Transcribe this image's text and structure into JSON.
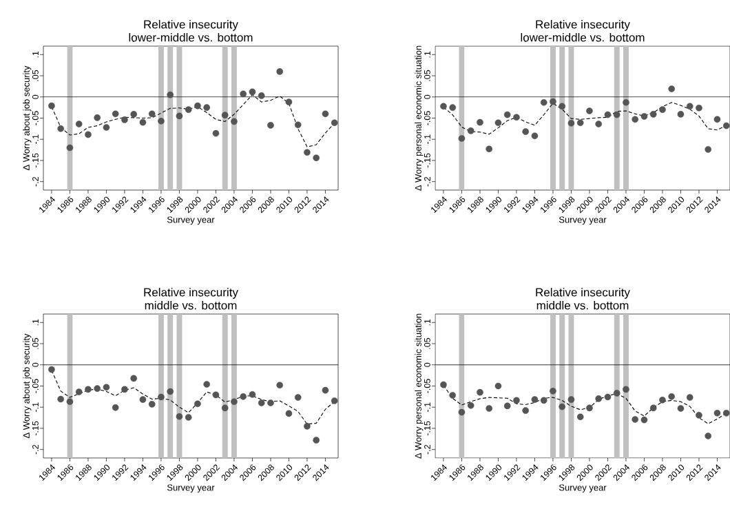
{
  "chart_data": [
    {
      "type": "scatter",
      "title": "Relative insecurity",
      "subtitle": "lower-middle vs. bottom",
      "xlabel": "Survey year",
      "ylabel": "Δ Worry about job security",
      "x": [
        1984,
        1985,
        1986,
        1987,
        1988,
        1989,
        1990,
        1991,
        1992,
        1993,
        1994,
        1995,
        1996,
        1997,
        1998,
        1999,
        2000,
        2001,
        2002,
        2003,
        2004,
        2005,
        2006,
        2007,
        2008,
        2009,
        2010,
        2011,
        2012,
        2013,
        2014,
        2015
      ],
      "series": [
        {
          "type": "scatter",
          "marker": "circle",
          "color": "#555555",
          "values": [
            -0.021,
            -0.075,
            -0.12,
            -0.064,
            -0.089,
            -0.049,
            -0.072,
            -0.04,
            -0.054,
            -0.041,
            -0.06,
            -0.04,
            -0.057,
            0.005,
            -0.045,
            -0.03,
            -0.021,
            -0.025,
            -0.086,
            -0.043,
            -0.058,
            0.007,
            0.012,
            0.003,
            -0.067,
            0.06,
            -0.012,
            -0.066,
            -0.131,
            -0.144,
            -0.04,
            -0.061
          ]
        },
        {
          "type": "line",
          "color": "#000000",
          "line_style": "dashed",
          "values": [
            -0.023,
            -0.072,
            -0.09,
            -0.087,
            -0.072,
            -0.068,
            -0.059,
            -0.053,
            -0.048,
            -0.049,
            -0.05,
            -0.049,
            -0.038,
            -0.027,
            -0.026,
            -0.029,
            -0.023,
            -0.037,
            -0.053,
            -0.058,
            -0.041,
            -0.018,
            0.005,
            -0.012,
            -0.008,
            0.002,
            -0.015,
            -0.075,
            -0.118,
            -0.113,
            -0.085,
            -0.062
          ]
        }
      ],
      "xlim": [
        1983.1,
        2015.4
      ],
      "ylim": [
        -0.22,
        0.12
      ],
      "xticks": [
        1984,
        1986,
        1988,
        1990,
        1992,
        1994,
        1996,
        1998,
        2000,
        2002,
        2004,
        2006,
        2008,
        2010,
        2012,
        2014
      ],
      "yticks": [
        {
          "value": -0.2,
          "label": "-.2"
        },
        {
          "value": -0.15,
          "label": "-.15"
        },
        {
          "value": -0.1,
          "label": "-.1"
        },
        {
          "value": -0.05,
          "label": "-.05"
        },
        {
          "value": 0,
          "label": "0"
        },
        {
          "value": 0.05,
          "label": ".05"
        },
        {
          "value": 0.1,
          "label": ".1"
        }
      ],
      "ref_lines": [
        {
          "axis": "y",
          "value": 0,
          "color": "#000000"
        }
      ],
      "bands": [
        {
          "axis": "x",
          "from": 1985.7,
          "to": 1986.3,
          "color": "#c0c0c0"
        },
        {
          "axis": "x",
          "from": 1995.7,
          "to": 1996.3,
          "color": "#c0c0c0"
        },
        {
          "axis": "x",
          "from": 1996.7,
          "to": 1997.3,
          "color": "#c0c0c0"
        },
        {
          "axis": "x",
          "from": 1997.7,
          "to": 1998.3,
          "color": "#c0c0c0"
        },
        {
          "axis": "x",
          "from": 2002.7,
          "to": 2003.3,
          "color": "#c0c0c0"
        },
        {
          "axis": "x",
          "from": 2003.7,
          "to": 2004.3,
          "color": "#c0c0c0"
        }
      ]
    },
    {
      "type": "scatter",
      "title": "Relative insecurity",
      "subtitle": "lower-middle vs. bottom",
      "xlabel": "Survey year",
      "ylabel": "Δ Worry personal economic situation",
      "x": [
        1984,
        1985,
        1986,
        1987,
        1988,
        1989,
        1990,
        1991,
        1992,
        1993,
        1994,
        1995,
        1996,
        1997,
        1998,
        1999,
        2000,
        2001,
        2002,
        2003,
        2004,
        2005,
        2006,
        2007,
        2008,
        2009,
        2010,
        2011,
        2012,
        2013,
        2014,
        2015
      ],
      "series": [
        {
          "type": "scatter",
          "marker": "circle",
          "color": "#555555",
          "values": [
            -0.022,
            -0.025,
            -0.098,
            -0.08,
            -0.06,
            -0.123,
            -0.061,
            -0.042,
            -0.048,
            -0.082,
            -0.092,
            -0.013,
            -0.011,
            -0.022,
            -0.062,
            -0.061,
            -0.033,
            -0.064,
            -0.042,
            -0.042,
            -0.013,
            -0.053,
            -0.046,
            -0.041,
            -0.03,
            0.019,
            -0.041,
            -0.022,
            -0.026,
            -0.124,
            -0.053,
            -0.068
          ]
        },
        {
          "type": "line",
          "color": "#000000",
          "line_style": "dashed",
          "values": [
            -0.024,
            -0.042,
            -0.071,
            -0.082,
            -0.083,
            -0.088,
            -0.073,
            -0.056,
            -0.048,
            -0.059,
            -0.067,
            -0.042,
            -0.015,
            -0.029,
            -0.051,
            -0.053,
            -0.051,
            -0.049,
            -0.048,
            -0.034,
            -0.033,
            -0.04,
            -0.045,
            -0.037,
            -0.023,
            -0.013,
            -0.02,
            -0.029,
            -0.045,
            -0.075,
            -0.078,
            -0.067
          ]
        }
      ],
      "xlim": [
        1983.1,
        2015.4
      ],
      "ylim": [
        -0.22,
        0.12
      ],
      "xticks": [
        1984,
        1986,
        1988,
        1990,
        1992,
        1994,
        1996,
        1998,
        2000,
        2002,
        2004,
        2006,
        2008,
        2010,
        2012,
        2014
      ],
      "yticks": [
        {
          "value": -0.2,
          "label": "-.2"
        },
        {
          "value": -0.15,
          "label": "-.15"
        },
        {
          "value": -0.1,
          "label": "-.1"
        },
        {
          "value": -0.05,
          "label": "-.05"
        },
        {
          "value": 0,
          "label": "0"
        },
        {
          "value": 0.05,
          "label": ".05"
        },
        {
          "value": 0.1,
          "label": ".1"
        }
      ],
      "ref_lines": [
        {
          "axis": "y",
          "value": 0,
          "color": "#000000"
        }
      ],
      "bands": [
        {
          "axis": "x",
          "from": 1985.7,
          "to": 1986.3,
          "color": "#c0c0c0"
        },
        {
          "axis": "x",
          "from": 1995.7,
          "to": 1996.3,
          "color": "#c0c0c0"
        },
        {
          "axis": "x",
          "from": 1996.7,
          "to": 1997.3,
          "color": "#c0c0c0"
        },
        {
          "axis": "x",
          "from": 1997.7,
          "to": 1998.3,
          "color": "#c0c0c0"
        },
        {
          "axis": "x",
          "from": 2002.7,
          "to": 2003.3,
          "color": "#c0c0c0"
        },
        {
          "axis": "x",
          "from": 2003.7,
          "to": 2004.3,
          "color": "#c0c0c0"
        }
      ]
    },
    {
      "type": "scatter",
      "title": "Relative insecurity",
      "subtitle": "middle vs. bottom",
      "xlabel": "Survey year",
      "ylabel": "Δ Worry about job security",
      "x": [
        1984,
        1985,
        1986,
        1987,
        1988,
        1989,
        1990,
        1991,
        1992,
        1993,
        1994,
        1995,
        1996,
        1997,
        1998,
        1999,
        2000,
        2001,
        2002,
        2003,
        2004,
        2005,
        2006,
        2007,
        2008,
        2009,
        2010,
        2011,
        2012,
        2013,
        2014,
        2015
      ],
      "series": [
        {
          "type": "scatter",
          "marker": "circle",
          "color": "#555555",
          "values": [
            -0.011,
            -0.081,
            -0.087,
            -0.064,
            -0.058,
            -0.056,
            -0.053,
            -0.101,
            -0.058,
            -0.032,
            -0.082,
            -0.093,
            -0.076,
            -0.063,
            -0.122,
            -0.124,
            -0.092,
            -0.046,
            -0.071,
            -0.102,
            -0.087,
            -0.075,
            -0.07,
            -0.09,
            -0.09,
            -0.048,
            -0.115,
            -0.077,
            -0.145,
            -0.178,
            -0.06,
            -0.085
          ]
        },
        {
          "type": "line",
          "color": "#000000",
          "line_style": "dashed",
          "values": [
            -0.013,
            -0.062,
            -0.077,
            -0.068,
            -0.06,
            -0.057,
            -0.063,
            -0.073,
            -0.06,
            -0.054,
            -0.069,
            -0.081,
            -0.079,
            -0.083,
            -0.1,
            -0.113,
            -0.09,
            -0.064,
            -0.071,
            -0.088,
            -0.082,
            -0.074,
            -0.073,
            -0.082,
            -0.087,
            -0.085,
            -0.097,
            -0.11,
            -0.14,
            -0.138,
            -0.105,
            -0.087
          ]
        }
      ],
      "xlim": [
        1983.1,
        2015.4
      ],
      "ylim": [
        -0.22,
        0.12
      ],
      "xticks": [
        1984,
        1986,
        1988,
        1990,
        1992,
        1994,
        1996,
        1998,
        2000,
        2002,
        2004,
        2006,
        2008,
        2010,
        2012,
        2014
      ],
      "yticks": [
        {
          "value": -0.2,
          "label": "-.2"
        },
        {
          "value": -0.15,
          "label": "-.15"
        },
        {
          "value": -0.1,
          "label": "-.1"
        },
        {
          "value": -0.05,
          "label": "-.05"
        },
        {
          "value": 0,
          "label": "0"
        },
        {
          "value": 0.05,
          "label": ".05"
        },
        {
          "value": 0.1,
          "label": ".1"
        }
      ],
      "ref_lines": [
        {
          "axis": "y",
          "value": 0,
          "color": "#000000"
        }
      ],
      "bands": [
        {
          "axis": "x",
          "from": 1985.7,
          "to": 1986.3,
          "color": "#c0c0c0"
        },
        {
          "axis": "x",
          "from": 1995.7,
          "to": 1996.3,
          "color": "#c0c0c0"
        },
        {
          "axis": "x",
          "from": 1996.7,
          "to": 1997.3,
          "color": "#c0c0c0"
        },
        {
          "axis": "x",
          "from": 1997.7,
          "to": 1998.3,
          "color": "#c0c0c0"
        },
        {
          "axis": "x",
          "from": 2002.7,
          "to": 2003.3,
          "color": "#c0c0c0"
        },
        {
          "axis": "x",
          "from": 2003.7,
          "to": 2004.3,
          "color": "#c0c0c0"
        }
      ]
    },
    {
      "type": "scatter",
      "title": "Relative insecurity",
      "subtitle": "middle vs. bottom",
      "xlabel": "Survey year",
      "ylabel": "Δ Worry personal economic situation",
      "x": [
        1984,
        1985,
        1986,
        1987,
        1988,
        1989,
        1990,
        1991,
        1992,
        1993,
        1994,
        1995,
        1996,
        1997,
        1998,
        1999,
        2000,
        2001,
        2002,
        2003,
        2004,
        2005,
        2006,
        2007,
        2008,
        2009,
        2010,
        2011,
        2012,
        2013,
        2014,
        2015
      ],
      "series": [
        {
          "type": "scatter",
          "marker": "circle",
          "color": "#555555",
          "values": [
            -0.047,
            -0.072,
            -0.112,
            -0.096,
            -0.065,
            -0.103,
            -0.05,
            -0.097,
            -0.084,
            -0.108,
            -0.082,
            -0.084,
            -0.062,
            -0.099,
            -0.082,
            -0.123,
            -0.102,
            -0.08,
            -0.076,
            -0.067,
            -0.058,
            -0.129,
            -0.13,
            -0.102,
            -0.083,
            -0.075,
            -0.103,
            -0.077,
            -0.119,
            -0.168,
            -0.114,
            -0.114
          ]
        },
        {
          "type": "line",
          "color": "#000000",
          "line_style": "dashed",
          "values": [
            -0.048,
            -0.079,
            -0.095,
            -0.087,
            -0.08,
            -0.077,
            -0.078,
            -0.079,
            -0.092,
            -0.094,
            -0.089,
            -0.079,
            -0.077,
            -0.084,
            -0.098,
            -0.106,
            -0.101,
            -0.082,
            -0.073,
            -0.068,
            -0.079,
            -0.109,
            -0.121,
            -0.101,
            -0.087,
            -0.084,
            -0.087,
            -0.098,
            -0.125,
            -0.139,
            -0.128,
            -0.114
          ]
        }
      ],
      "xlim": [
        1983.1,
        2015.4
      ],
      "ylim": [
        -0.22,
        0.12
      ],
      "xticks": [
        1984,
        1986,
        1988,
        1990,
        1992,
        1994,
        1996,
        1998,
        2000,
        2002,
        2004,
        2006,
        2008,
        2010,
        2012,
        2014
      ],
      "yticks": [
        {
          "value": -0.2,
          "label": "-.2"
        },
        {
          "value": -0.15,
          "label": "-.15"
        },
        {
          "value": -0.1,
          "label": "-.1"
        },
        {
          "value": -0.05,
          "label": "-.05"
        },
        {
          "value": 0,
          "label": "0"
        },
        {
          "value": 0.05,
          "label": ".05"
        },
        {
          "value": 0.1,
          "label": ".1"
        }
      ],
      "ref_lines": [
        {
          "axis": "y",
          "value": 0,
          "color": "#000000"
        }
      ],
      "bands": [
        {
          "axis": "x",
          "from": 1985.7,
          "to": 1986.3,
          "color": "#c0c0c0"
        },
        {
          "axis": "x",
          "from": 1995.7,
          "to": 1996.3,
          "color": "#c0c0c0"
        },
        {
          "axis": "x",
          "from": 1996.7,
          "to": 1997.3,
          "color": "#c0c0c0"
        },
        {
          "axis": "x",
          "from": 1997.7,
          "to": 1998.3,
          "color": "#c0c0c0"
        },
        {
          "axis": "x",
          "from": 2002.7,
          "to": 2003.3,
          "color": "#c0c0c0"
        },
        {
          "axis": "x",
          "from": 2003.7,
          "to": 2004.3,
          "color": "#c0c0c0"
        }
      ]
    }
  ]
}
